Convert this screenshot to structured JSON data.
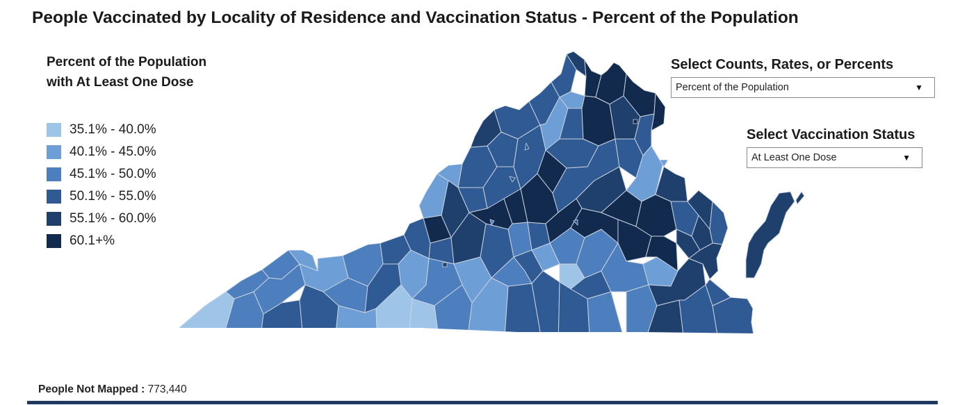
{
  "title": "People Vaccinated by Locality of Residence and Vaccination Status - Percent of the Population",
  "legend": {
    "title_line1": "Percent of the Population",
    "title_line2": "with At Least One Dose",
    "items": [
      {
        "label": "35.1% - 40.0%",
        "color": "#9ec5e8"
      },
      {
        "label": "40.1% - 45.0%",
        "color": "#6d9ed6"
      },
      {
        "label": "45.1% - 50.0%",
        "color": "#4d7fbe"
      },
      {
        "label": "50.1% - 55.0%",
        "color": "#2f5a93"
      },
      {
        "label": "55.1% - 60.0%",
        "color": "#1f3f6d"
      },
      {
        "label": "60.1+%",
        "color": "#122a4d"
      }
    ]
  },
  "controls": {
    "measure": {
      "label": "Select Counts, Rates, or Percents",
      "value": "Percent of the Population"
    },
    "status": {
      "label": "Select Vaccination Status",
      "value": "At Least One Dose"
    }
  },
  "footer": {
    "label": "People Not Mapped :",
    "value": "773,440"
  },
  "colors": {
    "border": "#c9d3df",
    "rule": "#1f3a60"
  }
}
